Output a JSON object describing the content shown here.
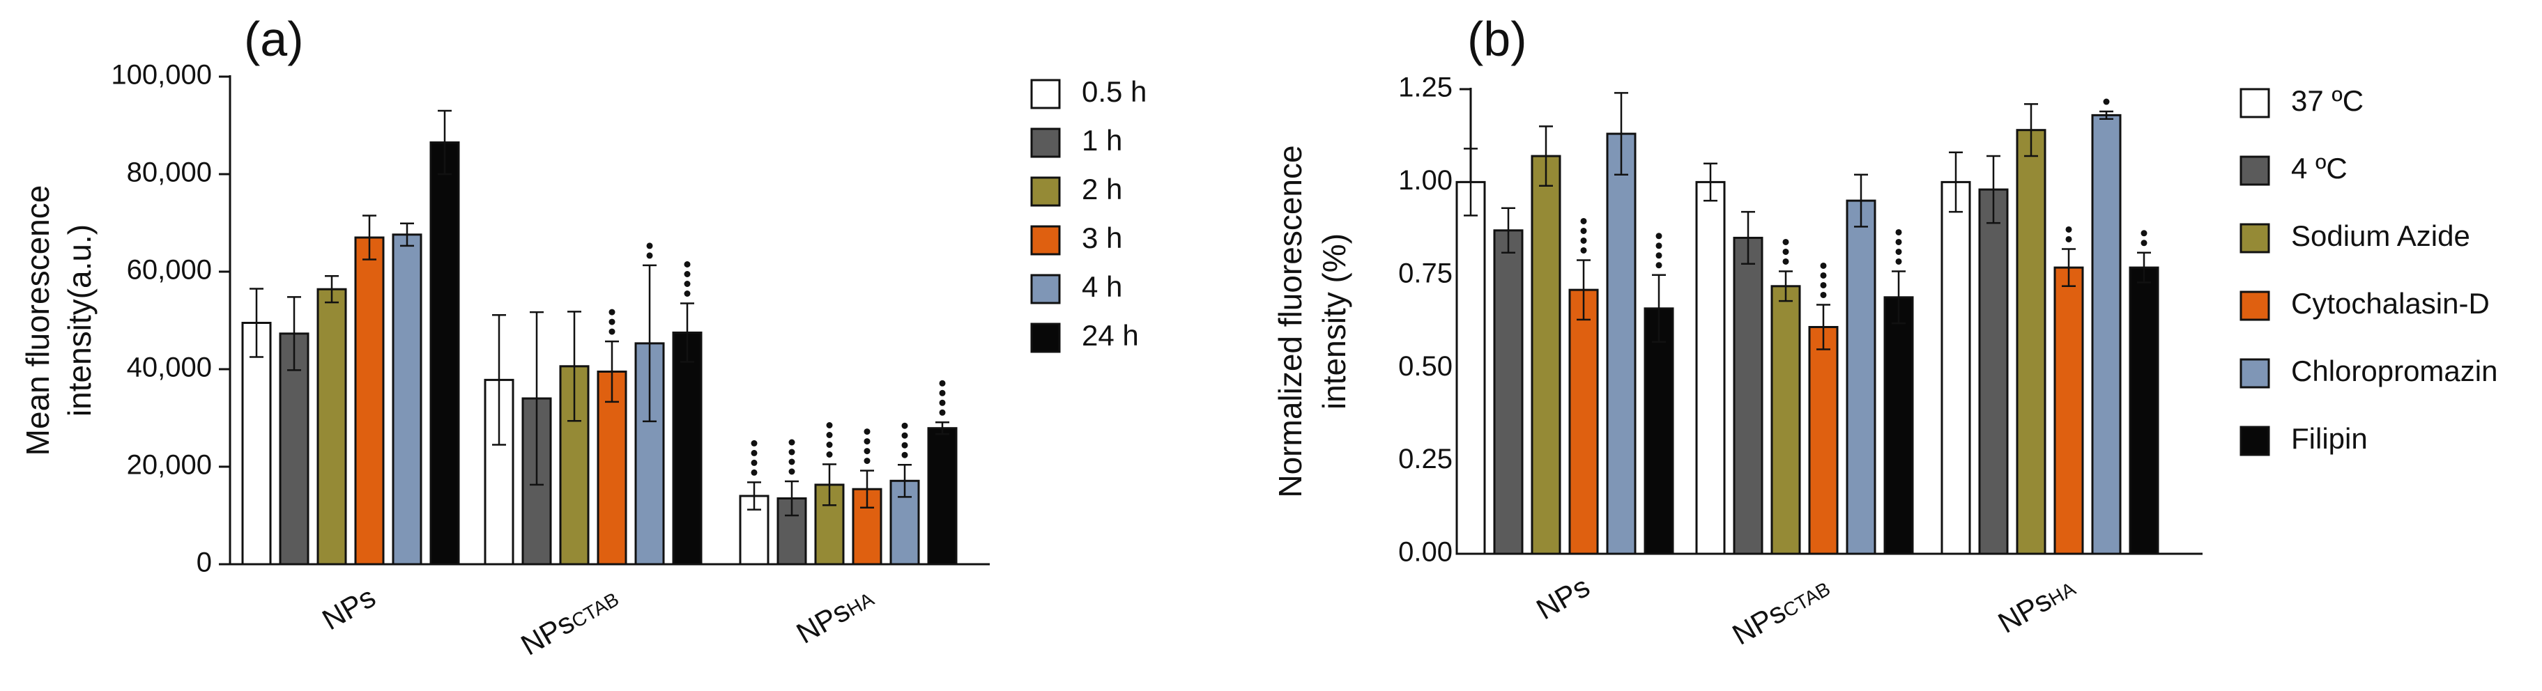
{
  "chart_data": [
    {
      "type": "bar",
      "panel_label": "(a)",
      "ylabel_lines": [
        "Mean fluorescence",
        "intensity(a.u.)"
      ],
      "ylim": [
        0,
        100000
      ],
      "yticks": [
        0,
        20000,
        40000,
        60000,
        80000,
        100000
      ],
      "ytick_labels": [
        "0",
        "20,000",
        "40,000",
        "60,000",
        "80,000",
        "100,000"
      ],
      "categories": [
        {
          "main": "NPs",
          "sub": ""
        },
        {
          "main": "NPs",
          "sub": "CTAB"
        },
        {
          "main": "NPs",
          "sub": "HA"
        }
      ],
      "series": [
        {
          "name": "0.5 h",
          "color": "#ffffff",
          "values": [
            49500,
            37800,
            14000
          ],
          "errors": [
            7000,
            13300,
            2800
          ],
          "sig": [
            0,
            0,
            4
          ]
        },
        {
          "name": "1 h",
          "color": "#5b5b5b",
          "values": [
            47300,
            34000,
            13500
          ],
          "errors": [
            7500,
            17700,
            3500
          ],
          "sig": [
            0,
            0,
            4
          ]
        },
        {
          "name": "2 h",
          "color": "#958a36",
          "values": [
            56400,
            40600,
            16300
          ],
          "errors": [
            2700,
            11200,
            4200
          ],
          "sig": [
            0,
            0,
            4
          ]
        },
        {
          "name": "3 h",
          "color": "#df6010",
          "values": [
            67000,
            39500,
            15400
          ],
          "errors": [
            4500,
            6200,
            3800
          ],
          "sig": [
            0,
            3,
            4
          ]
        },
        {
          "name": "4 h",
          "color": "#7f96b6",
          "values": [
            67600,
            45300,
            17100
          ],
          "errors": [
            2300,
            16000,
            3300
          ],
          "sig": [
            0,
            2,
            4
          ]
        },
        {
          "name": "24 h",
          "color": "#080808",
          "values": [
            86500,
            47500,
            27900
          ],
          "errors": [
            6500,
            6000,
            1200
          ],
          "sig": [
            0,
            4,
            4
          ]
        }
      ],
      "legend_position": "right"
    },
    {
      "type": "bar",
      "panel_label": "(b)",
      "ylabel_lines": [
        "Normalized fluorescence",
        "intensity (%)"
      ],
      "ylim": [
        0,
        1.25
      ],
      "yticks": [
        0,
        0.25,
        0.5,
        0.75,
        1.0,
        1.25
      ],
      "ytick_labels": [
        "0.00",
        "0.25",
        "0.50",
        "0.75",
        "1.00",
        "1.25"
      ],
      "categories": [
        {
          "main": "NPs",
          "sub": ""
        },
        {
          "main": "NPs",
          "sub": "CTAB"
        },
        {
          "main": "NPs",
          "sub": "HA"
        }
      ],
      "series": [
        {
          "name": "37 ºC",
          "color": "#ffffff",
          "values": [
            1.0,
            1.0,
            1.0
          ],
          "errors": [
            0.09,
            0.05,
            0.08
          ],
          "sig": [
            0,
            0,
            0
          ]
        },
        {
          "name": "4 ºC",
          "color": "#5b5b5b",
          "values": [
            0.87,
            0.85,
            0.98
          ],
          "errors": [
            0.06,
            0.07,
            0.09
          ],
          "sig": [
            0,
            0,
            0
          ]
        },
        {
          "name": "Sodium Azide",
          "color": "#958a36",
          "values": [
            1.07,
            0.72,
            1.14
          ],
          "errors": [
            0.08,
            0.04,
            0.07
          ],
          "sig": [
            0,
            3,
            0
          ]
        },
        {
          "name": "Cytochalasin-D",
          "color": "#df6010",
          "values": [
            0.71,
            0.61,
            0.77
          ],
          "errors": [
            0.08,
            0.06,
            0.05
          ],
          "sig": [
            4,
            4,
            2
          ]
        },
        {
          "name": "Chloropromazin",
          "color": "#7f96b6",
          "values": [
            1.13,
            0.95,
            1.18
          ],
          "errors": [
            0.11,
            0.07,
            0.01
          ],
          "sig": [
            0,
            0,
            1
          ]
        },
        {
          "name": "Filipin",
          "color": "#080808",
          "values": [
            0.66,
            0.69,
            0.77
          ],
          "errors": [
            0.09,
            0.07,
            0.04
          ],
          "sig": [
            4,
            4,
            2
          ]
        }
      ],
      "legend_position": "right"
    }
  ]
}
